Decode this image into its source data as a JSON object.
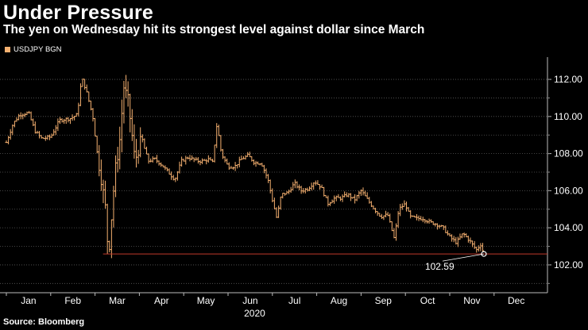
{
  "title": "Under Pressure",
  "subtitle": "The yen on Wednesday hit its strongest level against dollar since March",
  "legend": {
    "label": "USDJPY BGN",
    "color": "#f5b070"
  },
  "source": "Source: Bloomberg",
  "chart_data": {
    "type": "ohlc",
    "title": "Under Pressure",
    "series_name": "USDJPY BGN",
    "ylim": [
      100.5,
      113.2
    ],
    "yticks": [
      102.0,
      104.0,
      106.0,
      108.0,
      110.0,
      112.0
    ],
    "ytick_labels": [
      "102.00",
      "104.00",
      "106.00",
      "108.00",
      "110.00",
      "112.00"
    ],
    "xtick_labels": [
      "Jan",
      "Feb",
      "Mar",
      "Apr",
      "May",
      "Jun",
      "Jul",
      "Aug",
      "Sep",
      "Oct",
      "Nov",
      "Dec"
    ],
    "year_label": "2020",
    "reference_line": {
      "value": 102.59,
      "label": "102.59",
      "color": "#c0392b"
    },
    "anchors": [
      [
        0.0,
        108.6
      ],
      [
        0.15,
        109.6
      ],
      [
        0.3,
        110.1
      ],
      [
        0.5,
        110.2
      ],
      [
        0.65,
        109.2
      ],
      [
        0.8,
        108.8
      ],
      [
        1.0,
        108.9
      ],
      [
        1.2,
        109.8
      ],
      [
        1.45,
        109.9
      ],
      [
        1.6,
        110.1
      ],
      [
        1.7,
        112.1
      ],
      [
        1.8,
        111.4
      ],
      [
        1.95,
        110.0
      ],
      [
        2.05,
        108.0
      ],
      [
        2.15,
        106.5
      ],
      [
        2.25,
        104.8
      ],
      [
        2.3,
        102.3
      ],
      [
        2.45,
        107.0
      ],
      [
        2.55,
        108.5
      ],
      [
        2.65,
        111.6
      ],
      [
        2.75,
        110.8
      ],
      [
        2.9,
        107.6
      ],
      [
        3.05,
        108.8
      ],
      [
        3.2,
        107.6
      ],
      [
        3.35,
        107.7
      ],
      [
        3.5,
        107.4
      ],
      [
        3.65,
        107.0
      ],
      [
        3.8,
        106.6
      ],
      [
        3.95,
        107.6
      ],
      [
        4.1,
        107.8
      ],
      [
        4.3,
        107.6
      ],
      [
        4.45,
        107.6
      ],
      [
        4.55,
        107.7
      ],
      [
        4.65,
        107.5
      ],
      [
        4.75,
        109.6
      ],
      [
        4.85,
        108.0
      ],
      [
        5.0,
        107.3
      ],
      [
        5.15,
        107.3
      ],
      [
        5.3,
        107.7
      ],
      [
        5.45,
        107.9
      ],
      [
        5.6,
        107.5
      ],
      [
        5.75,
        107.5
      ],
      [
        5.9,
        106.6
      ],
      [
        6.0,
        105.5
      ],
      [
        6.1,
        104.5
      ],
      [
        6.2,
        105.8
      ],
      [
        6.35,
        105.9
      ],
      [
        6.5,
        106.4
      ],
      [
        6.65,
        106.0
      ],
      [
        6.8,
        106.1
      ],
      [
        6.95,
        106.5
      ],
      [
        7.1,
        106.2
      ],
      [
        7.25,
        105.3
      ],
      [
        7.4,
        105.6
      ],
      [
        7.55,
        105.6
      ],
      [
        7.7,
        105.8
      ],
      [
        7.85,
        105.5
      ],
      [
        8.0,
        106.0
      ],
      [
        8.15,
        105.5
      ],
      [
        8.3,
        105.0
      ],
      [
        8.45,
        104.6
      ],
      [
        8.6,
        104.7
      ],
      [
        8.75,
        103.4
      ],
      [
        8.85,
        105.0
      ],
      [
        9.0,
        105.3
      ],
      [
        9.1,
        104.6
      ],
      [
        9.25,
        104.5
      ],
      [
        9.4,
        104.5
      ],
      [
        9.55,
        104.3
      ],
      [
        9.7,
        104.2
      ],
      [
        9.85,
        104.0
      ],
      [
        10.0,
        103.5
      ],
      [
        10.15,
        103.2
      ],
      [
        10.3,
        103.7
      ],
      [
        10.45,
        103.3
      ],
      [
        10.6,
        102.8
      ],
      [
        10.7,
        103.1
      ],
      [
        10.77,
        102.59
      ]
    ]
  }
}
